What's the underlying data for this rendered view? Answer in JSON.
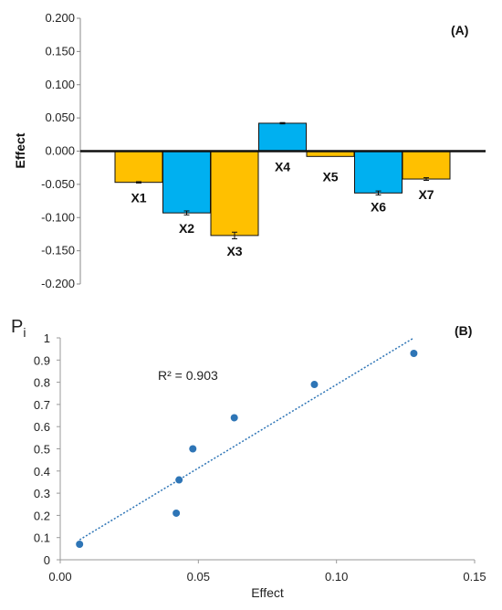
{
  "chart_data": [
    {
      "panel_label": "(A)",
      "type": "bar",
      "ylabel": "Effect",
      "ylim": [
        -0.2,
        0.2
      ],
      "yticks": [
        "0.200",
        "0.150",
        "0.100",
        "0.050",
        "0.000",
        "-0.050",
        "-0.100",
        "-0.150",
        "-0.200"
      ],
      "categories": [
        "X1",
        "X2",
        "X3",
        "X4",
        "X5",
        "X6",
        "X7"
      ],
      "values": [
        -0.047,
        -0.093,
        -0.127,
        0.042,
        -0.008,
        -0.063,
        -0.042
      ],
      "errors": [
        0.001,
        0.003,
        0.005,
        0.001,
        0.0,
        0.003,
        0.002
      ],
      "colors": [
        "#FFC000",
        "#00B0F0",
        "#FFC000",
        "#00B0F0",
        "#FFC000",
        "#00B0F0",
        "#FFC000"
      ],
      "grid": false
    },
    {
      "panel_label": "(B)",
      "type": "scatter",
      "ylabel": "P",
      "ylabel_sub": "i",
      "xlabel": "Effect",
      "xlim": [
        0,
        0.15
      ],
      "ylim": [
        0,
        1
      ],
      "xticks": [
        "0.00",
        "0.05",
        "0.10",
        "0.15"
      ],
      "yticks": [
        "0",
        "0.1",
        "0.2",
        "0.3",
        "0.4",
        "0.5",
        "0.6",
        "0.7",
        "0.8",
        "0.9",
        "1"
      ],
      "points": [
        {
          "x": 0.007,
          "y": 0.07
        },
        {
          "x": 0.042,
          "y": 0.21
        },
        {
          "x": 0.043,
          "y": 0.36
        },
        {
          "x": 0.048,
          "y": 0.5
        },
        {
          "x": 0.063,
          "y": 0.64
        },
        {
          "x": 0.092,
          "y": 0.79
        },
        {
          "x": 0.128,
          "y": 0.93
        }
      ],
      "trendline": {
        "x": [
          0.007,
          0.128
        ],
        "y": [
          0.09,
          1.0
        ]
      },
      "annotation": "R² = 0.903",
      "point_color": "#2E75B6",
      "grid": false
    }
  ]
}
